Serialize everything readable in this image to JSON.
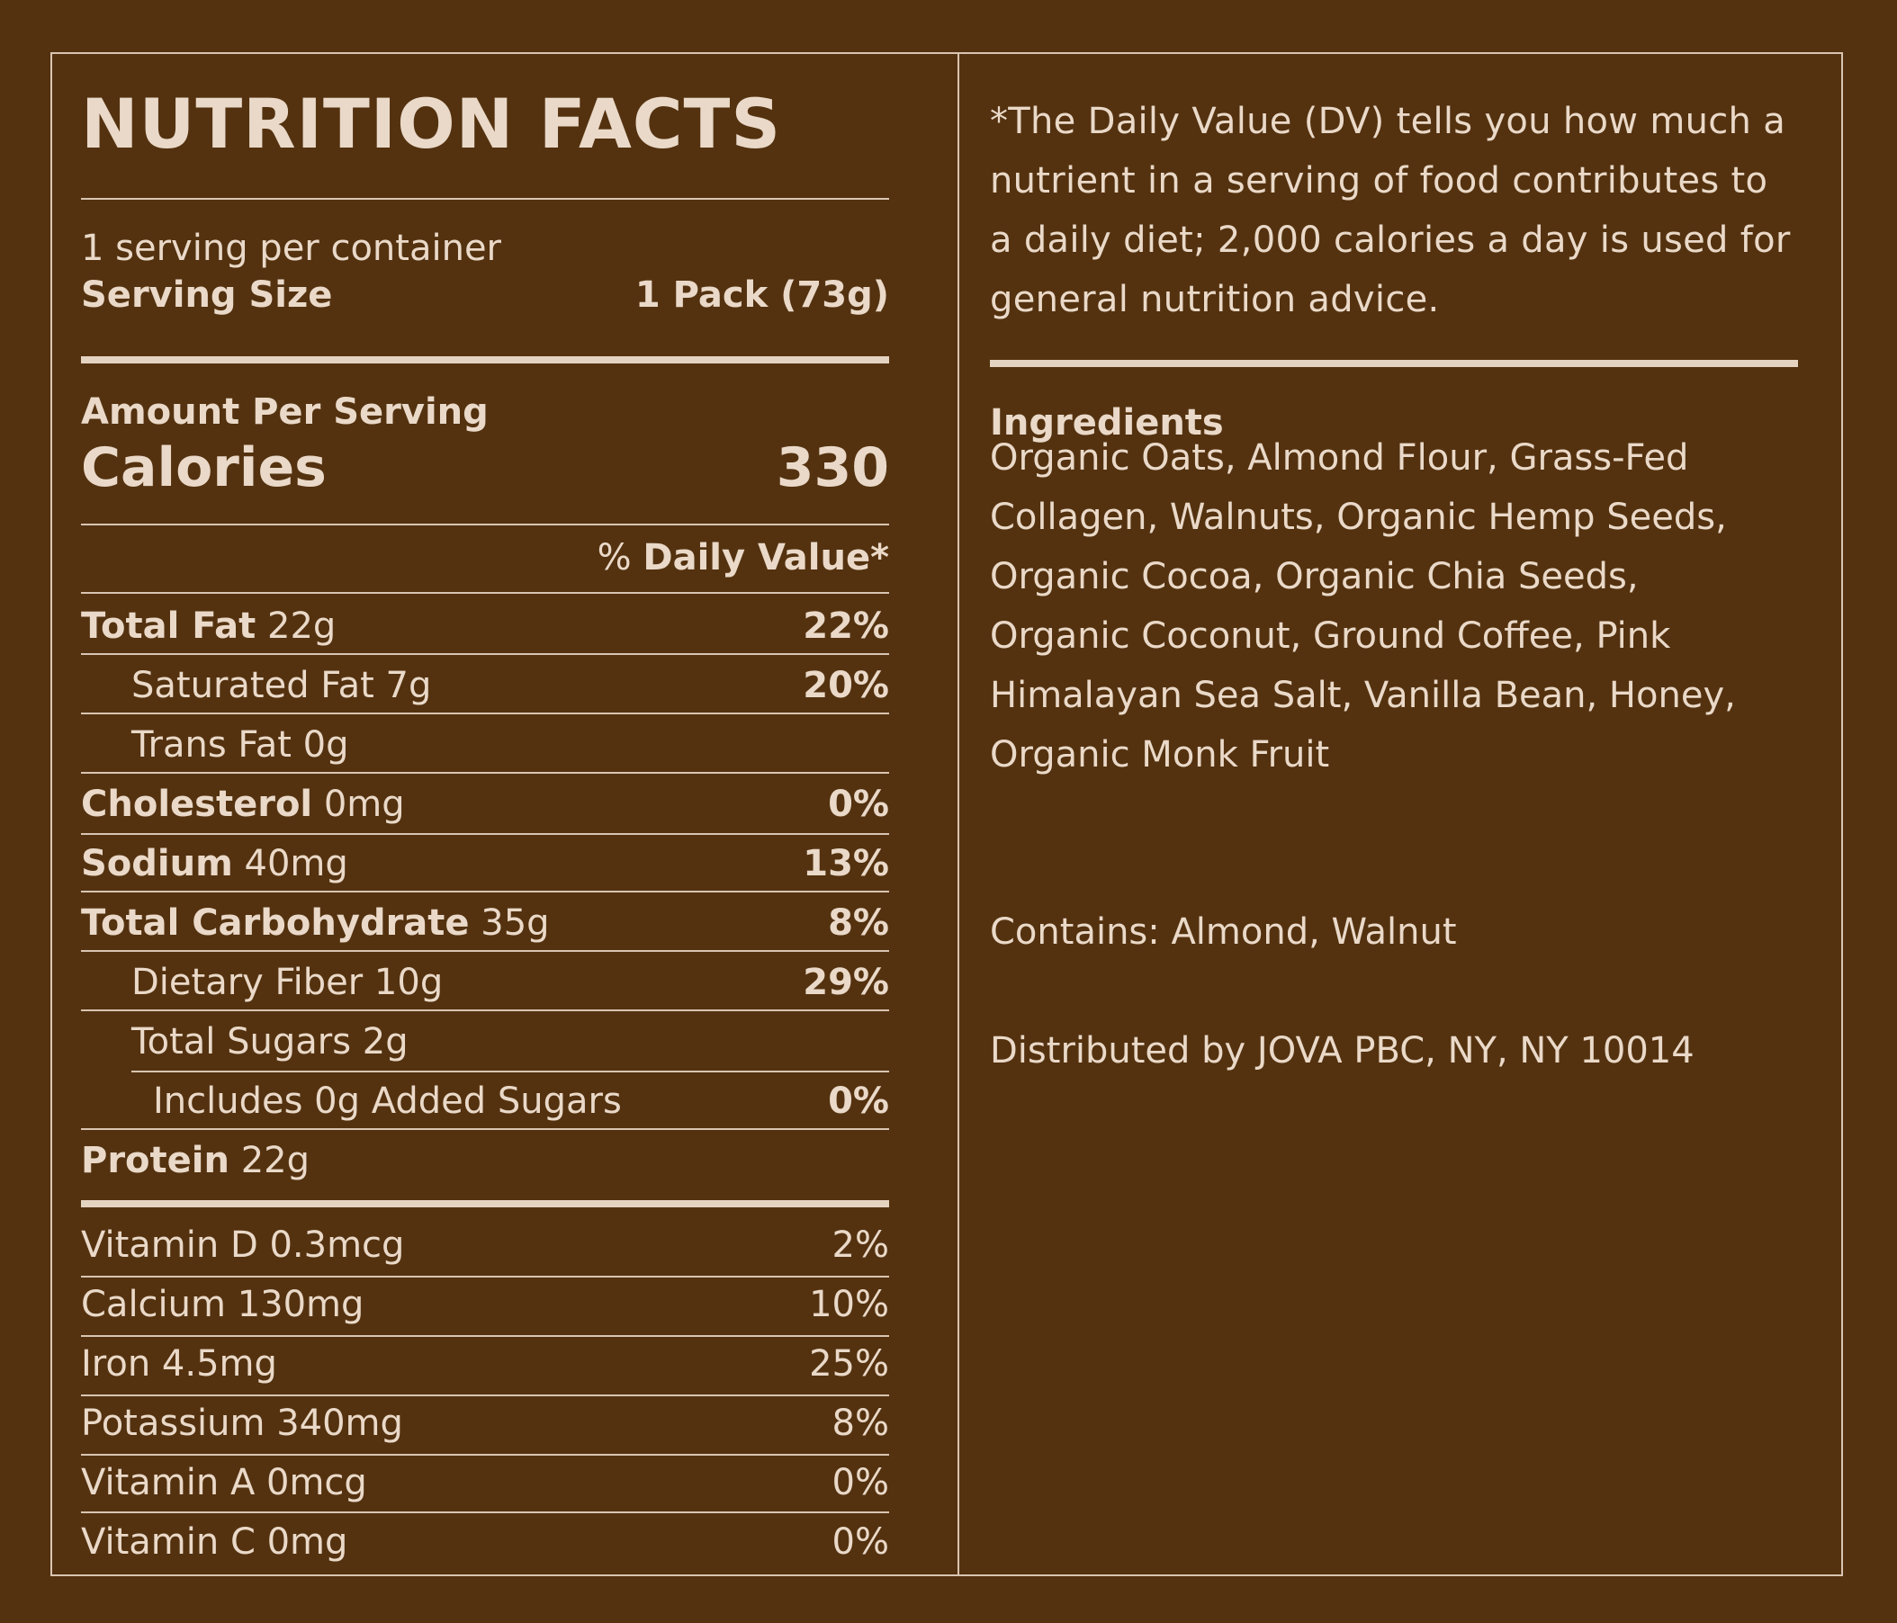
{
  "title": "NUTRITION FACTS",
  "servings_per_container": "1 serving per container",
  "serving_size": {
    "label": "Serving Size",
    "value": "1 Pack (73g)"
  },
  "amount_per_serving": "Amount Per Serving",
  "calories": {
    "label": "Calories",
    "value": "330"
  },
  "daily_value_header": {
    "prefix": "% ",
    "bold": "Daily Value*"
  },
  "nutrients": [
    {
      "name": "Total Fat",
      "amount": "22g",
      "dv": "22%"
    },
    {
      "name": "Saturated Fat 7g",
      "amount": "",
      "dv": "20%"
    },
    {
      "name": "Trans Fat 0g",
      "amount": "",
      "dv": ""
    },
    {
      "name": "Cholesterol",
      "amount": "0mg",
      "dv": "0%"
    },
    {
      "name": "Sodium",
      "amount": "40mg",
      "dv": "13%"
    },
    {
      "name": "Total Carbohydrate",
      "amount": "35g",
      "dv": "8%"
    },
    {
      "name": "Dietary Fiber 10g",
      "amount": "",
      "dv": "29%"
    },
    {
      "name": "Total Sugars 2g",
      "amount": "",
      "dv": ""
    },
    {
      "name": "Includes 0g Added Sugars",
      "amount": "",
      "dv": "0%"
    },
    {
      "name": "Protein",
      "amount": "22g",
      "dv": ""
    }
  ],
  "vitamins": [
    {
      "label": "Vitamin D 0.3mcg",
      "dv": "2%"
    },
    {
      "label": "Calcium 130mg",
      "dv": "10%"
    },
    {
      "label": "Iron 4.5mg",
      "dv": "25%"
    },
    {
      "label": "Potassium 340mg",
      "dv": "8%"
    },
    {
      "label": "Vitamin A 0mcg",
      "dv": "0%"
    },
    {
      "label": "Vitamin C 0mg",
      "dv": "0%"
    }
  ],
  "dv_note": "*The Daily Value (DV) tells you how much a nutrient in a serving of food contributes to a daily diet; 2,000 calories a day is used for general nutrition advice.",
  "ingredients": {
    "title": "Ingredients",
    "text": "Organic Oats, Almond Flour, Grass-Fed Collagen, Walnuts, Organic Hemp Seeds, Organic Cocoa, Organic Chia Seeds, Organic Coconut, Ground Coffee, Pink Himalayan Sea Salt, Vanilla Bean, Honey, Organic Monk Fruit"
  },
  "contains": "Contains: Almond, Walnut",
  "distributed_by": "Distributed by JOVA PBC, NY, NY 10014",
  "colors": {
    "background": "#543210",
    "text": "#ead9c8",
    "rule": "#d9c5b2"
  }
}
